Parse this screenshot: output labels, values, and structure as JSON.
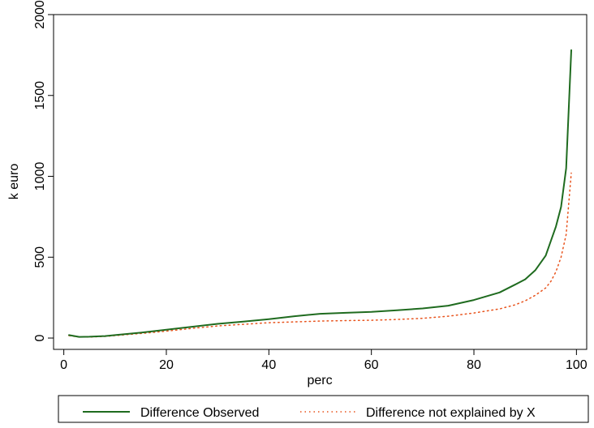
{
  "chart_data": {
    "type": "line",
    "title": "",
    "xlabel": "perc",
    "ylabel": "k euro",
    "xlim": [
      -2,
      102
    ],
    "ylim": [
      -70,
      2000
    ],
    "x_ticks": [
      0,
      20,
      40,
      60,
      80,
      100
    ],
    "y_ticks": [
      0,
      500,
      1000,
      1500,
      2000
    ],
    "x_tick_labels": [
      "0",
      "20",
      "40",
      "60",
      "80",
      "100"
    ],
    "y_tick_labels": [
      "0",
      "500",
      "1000",
      "1500",
      "2000"
    ],
    "grid": false,
    "legend_position": "bottom",
    "colors": {
      "observed": "#1f6b1f",
      "unexplained": "#e8531c"
    },
    "series": [
      {
        "name": "Difference Observed",
        "line_style": "solid",
        "x": [
          1,
          3,
          5,
          8,
          10,
          15,
          20,
          25,
          30,
          35,
          40,
          45,
          50,
          55,
          60,
          65,
          70,
          75,
          80,
          85,
          88,
          90,
          92,
          94,
          95,
          96,
          97,
          98,
          99
        ],
        "y": [
          18,
          7,
          8,
          12,
          18,
          33,
          52,
          70,
          88,
          102,
          117,
          135,
          150,
          156,
          162,
          172,
          183,
          200,
          235,
          282,
          330,
          363,
          420,
          510,
          600,
          690,
          810,
          1050,
          1780
        ]
      },
      {
        "name": "Difference not explained by X",
        "line_style": "dotted",
        "x": [
          1,
          3,
          5,
          8,
          10,
          15,
          20,
          25,
          30,
          35,
          40,
          45,
          50,
          55,
          60,
          65,
          70,
          75,
          80,
          85,
          88,
          90,
          92,
          94,
          95,
          96,
          97,
          98,
          99
        ],
        "y": [
          15,
          6,
          6,
          10,
          15,
          28,
          43,
          60,
          75,
          85,
          95,
          100,
          105,
          108,
          110,
          115,
          122,
          135,
          155,
          180,
          205,
          230,
          265,
          310,
          350,
          410,
          500,
          640,
          1020
        ]
      }
    ]
  }
}
